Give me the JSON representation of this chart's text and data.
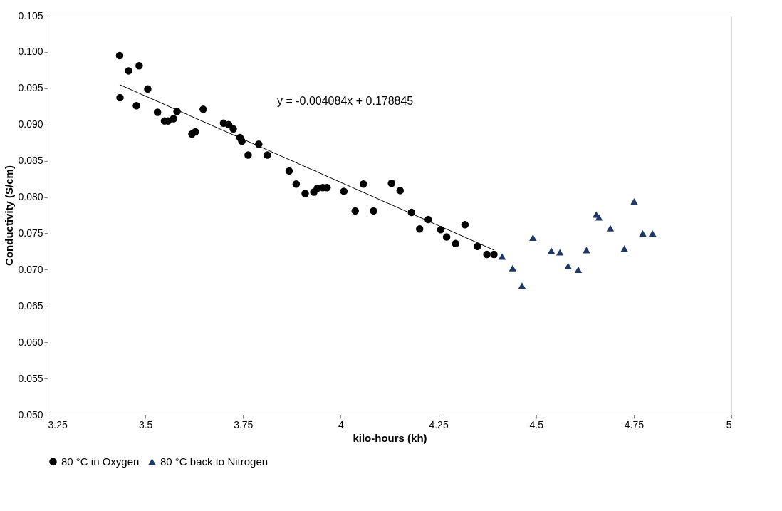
{
  "chart_data": {
    "type": "scatter",
    "xlabel": "kilo-hours  (kh)",
    "ylabel": "Conductivity (S/cm)",
    "annotations": [
      "y = -0.004084x + 0.178845"
    ],
    "xlim": [
      3.25,
      5
    ],
    "xticks": [
      3.25,
      3.5,
      3.75,
      4,
      4.25,
      4.5,
      4.75,
      5
    ],
    "ylim": [
      0.05,
      0.105
    ],
    "yticks": [
      {
        "value": 0.05,
        "label": "0.050"
      },
      {
        "value": 0.055,
        "label": "0.055"
      },
      {
        "value": 0.06,
        "label": "0.060"
      },
      {
        "value": 0.065,
        "label": "0.065"
      },
      {
        "value": 0.07,
        "label": "0.070"
      },
      {
        "value": 0.075,
        "label": "0.075"
      },
      {
        "value": 0.08,
        "label": "0.080"
      },
      {
        "value": 0.085,
        "label": "0.085"
      },
      {
        "value": 0.09,
        "label": "0.090"
      },
      {
        "value": 0.095,
        "label": "0.095"
      },
      {
        "value": 0.1,
        "label": "0.100"
      },
      {
        "value": 0.105,
        "label": "0.105"
      }
    ],
    "grid": false,
    "legend": "bottom",
    "series": [
      {
        "name": "80 °C in Oxygen",
        "color": "#000000",
        "marker": "circle",
        "x": [
          3.434,
          3.435,
          3.457,
          3.477,
          3.484,
          3.506,
          3.531,
          3.549,
          3.558,
          3.572,
          3.581,
          3.619,
          3.628,
          3.648,
          3.7,
          3.713,
          3.725,
          3.742,
          3.747,
          3.763,
          3.79,
          3.812,
          3.868,
          3.886,
          3.909,
          3.931,
          3.94,
          3.954,
          3.965,
          4.008,
          4.037,
          4.058,
          4.084,
          4.13,
          4.152,
          4.181,
          4.202,
          4.224,
          4.256,
          4.271,
          4.294,
          4.318,
          4.35,
          4.374,
          4.392
        ],
        "values": [
          0.0995,
          0.0937,
          0.0974,
          0.0926,
          0.0981,
          0.0949,
          0.0917,
          0.0905,
          0.0905,
          0.0908,
          0.0918,
          0.0887,
          0.089,
          0.0921,
          0.0902,
          0.09,
          0.0894,
          0.0882,
          0.0877,
          0.0858,
          0.0873,
          0.0858,
          0.0836,
          0.0818,
          0.0805,
          0.0807,
          0.0812,
          0.0813,
          0.0813,
          0.0808,
          0.0781,
          0.0818,
          0.0781,
          0.0819,
          0.0809,
          0.0779,
          0.0756,
          0.0769,
          0.0755,
          0.0745,
          0.0736,
          0.0762,
          0.0732,
          0.0721,
          0.0721
        ]
      },
      {
        "name": "80 °C back to Nitrogen",
        "color": "#1f3864",
        "marker": "triangle",
        "x": [
          4.413,
          4.44,
          4.464,
          4.492,
          4.539,
          4.561,
          4.582,
          4.608,
          4.629,
          4.654,
          4.661,
          4.69,
          4.726,
          4.751,
          4.773,
          4.798
        ],
        "values": [
          0.0718,
          0.0702,
          0.0678,
          0.0744,
          0.0726,
          0.0724,
          0.0705,
          0.07,
          0.0727,
          0.0776,
          0.0772,
          0.0757,
          0.0729,
          0.0794,
          0.075,
          0.075
        ]
      },
      {
        "type": "line",
        "color": "#000000",
        "marker": "none",
        "line_style": "solid",
        "x": [
          3.434,
          4.392
        ],
        "values": [
          0.0955,
          0.0727
        ]
      }
    ]
  }
}
